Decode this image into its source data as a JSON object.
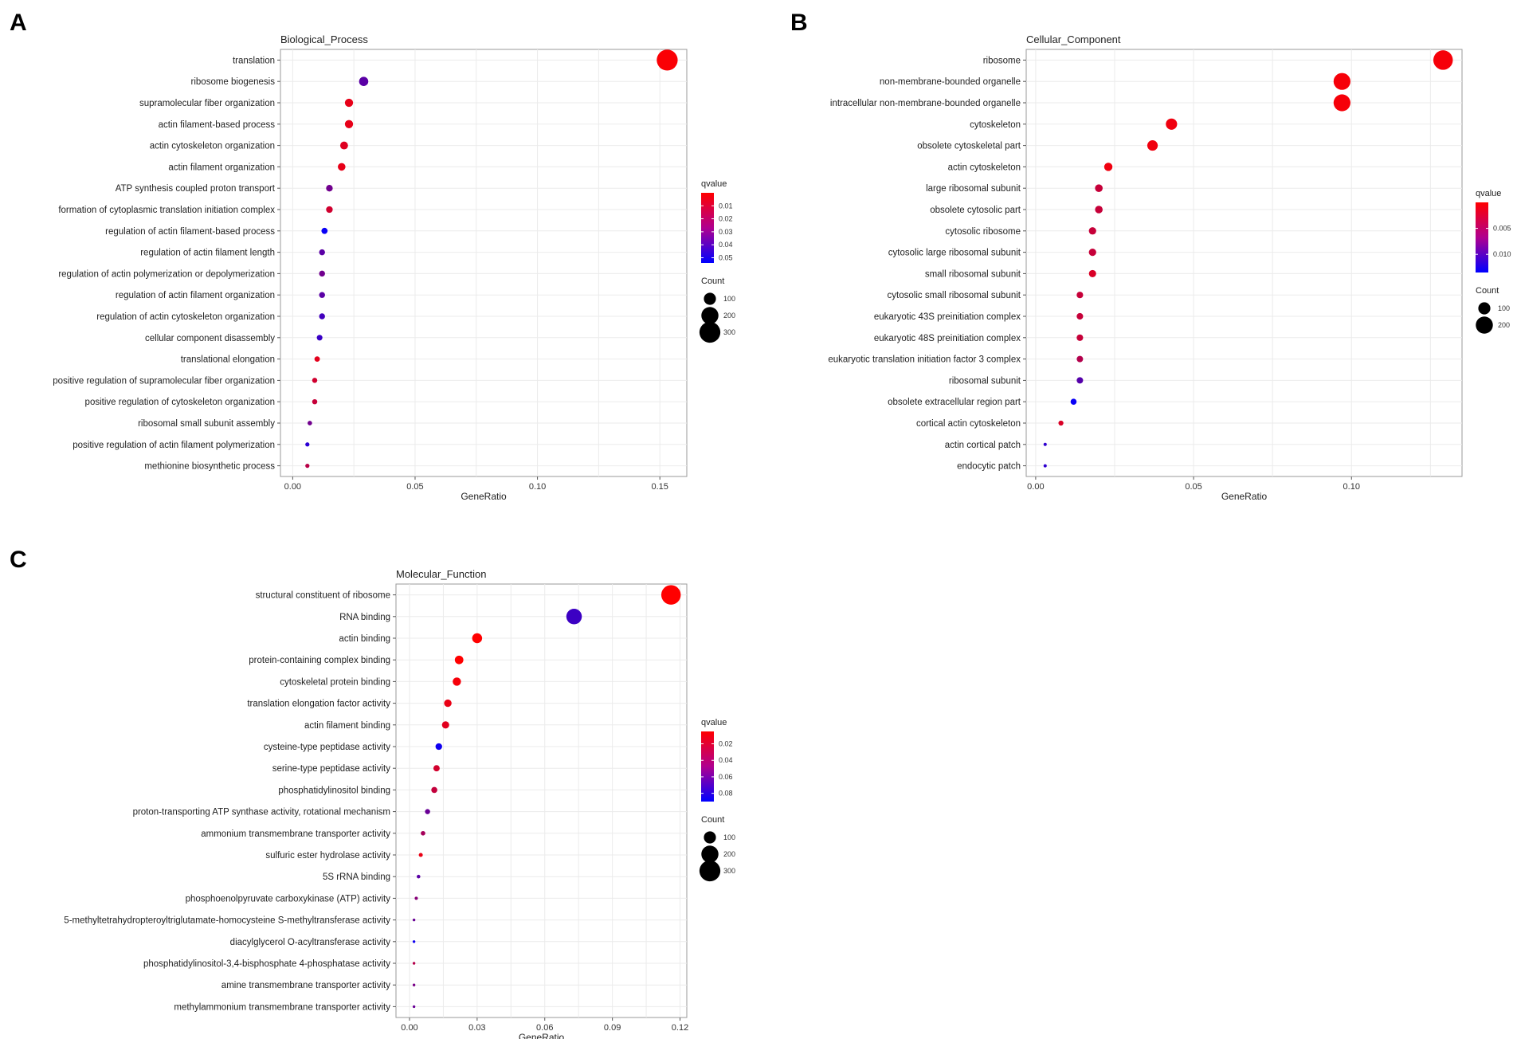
{
  "chart_data": [
    {
      "panel": "A",
      "type": "scatter",
      "title": "Biological_Process",
      "xlabel": "GeneRatio",
      "ylabel": "",
      "xlim": [
        -0.005,
        0.161
      ],
      "xticks": [
        0.0,
        0.05,
        0.1,
        0.15
      ],
      "xtick_labels": [
        "0.00",
        "0.05",
        "0.10",
        "0.15"
      ],
      "grid": true,
      "legend_position": "right",
      "categories": [
        "translation",
        "ribosome biogenesis",
        "supramolecular fiber organization",
        "actin filament-based process",
        "actin cytoskeleton organization",
        "actin filament organization",
        "ATP synthesis coupled proton transport",
        "formation of cytoplasmic translation initiation complex",
        "regulation of actin filament-based process",
        "regulation of actin filament length",
        "regulation of actin polymerization or depolymerization",
        "regulation of actin filament organization",
        "regulation of actin cytoskeleton organization",
        "cellular component disassembly",
        "translational elongation",
        "positive regulation of supramolecular fiber organization",
        "positive regulation of cytoskeleton organization",
        "ribosomal small subunit assembly",
        "positive regulation of actin filament polymerization",
        "methionine biosynthetic process"
      ],
      "gene_ratio": [
        0.153,
        0.029,
        0.023,
        0.023,
        0.021,
        0.02,
        0.015,
        0.015,
        0.013,
        0.012,
        0.012,
        0.012,
        0.012,
        0.011,
        0.01,
        0.009,
        0.009,
        0.007,
        0.006,
        0.006
      ],
      "count": [
        300,
        58,
        46,
        46,
        42,
        40,
        30,
        30,
        26,
        24,
        24,
        24,
        24,
        22,
        20,
        18,
        18,
        14,
        12,
        12
      ],
      "qvalue": [
        0.001,
        0.035,
        0.005,
        0.005,
        0.007,
        0.005,
        0.03,
        0.01,
        0.052,
        0.035,
        0.03,
        0.035,
        0.04,
        0.042,
        0.006,
        0.01,
        0.012,
        0.03,
        0.045,
        0.015
      ],
      "color_legend": {
        "title": "qvalue",
        "ticks": [
          0.01,
          0.02,
          0.03,
          0.04,
          0.05
        ],
        "tick_labels": [
          "0.01",
          "0.02",
          "0.03",
          "0.04",
          "0.05"
        ],
        "range": [
          0.0,
          0.054
        ]
      },
      "size_legend": {
        "title": "Count",
        "values": [
          100,
          200,
          300
        ],
        "labels": [
          "100",
          "200",
          "300"
        ]
      }
    },
    {
      "panel": "B",
      "type": "scatter",
      "title": "Cellular_Component",
      "xlabel": "GeneRatio",
      "ylabel": "",
      "xlim": [
        -0.003,
        0.135
      ],
      "xticks": [
        0.0,
        0.05,
        0.1
      ],
      "xtick_labels": [
        "0.00",
        "0.05",
        "0.10"
      ],
      "grid": true,
      "legend_position": "right",
      "categories": [
        "ribosome",
        "non-membrane-bounded organelle",
        "intracellular non-membrane-bounded organelle",
        "cytoskeleton",
        "obsolete cytoskeletal part",
        "actin cytoskeleton",
        "large ribosomal subunit",
        "obsolete cytosolic part",
        "cytosolic ribosome",
        "cytosolic large ribosomal subunit",
        "small ribosomal subunit",
        "cytosolic small ribosomal subunit",
        "eukaryotic 43S preinitiation complex",
        "eukaryotic 48S preinitiation complex",
        "eukaryotic translation initiation factor 3 complex",
        "ribosomal subunit",
        "obsolete extracellular region part",
        "cortical actin cytoskeleton",
        "actin cortical patch",
        "endocytic patch"
      ],
      "gene_ratio": [
        0.129,
        0.097,
        0.097,
        0.043,
        0.037,
        0.023,
        0.02,
        0.02,
        0.018,
        0.018,
        0.018,
        0.014,
        0.014,
        0.014,
        0.014,
        0.014,
        0.012,
        0.008,
        0.003,
        0.003
      ],
      "count": [
        260,
        195,
        195,
        87,
        75,
        47,
        40,
        40,
        37,
        37,
        36,
        29,
        29,
        29,
        28,
        28,
        25,
        17,
        7,
        7
      ],
      "qvalue": [
        0.0005,
        0.0005,
        0.0005,
        0.0008,
        0.0008,
        0.0008,
        0.003,
        0.003,
        0.003,
        0.003,
        0.002,
        0.003,
        0.003,
        0.003,
        0.004,
        0.009,
        0.013,
        0.002,
        0.011,
        0.011
      ],
      "color_legend": {
        "title": "qvalue",
        "ticks": [
          0.005,
          0.01
        ],
        "tick_labels": [
          "0.005",
          "0.010"
        ],
        "range": [
          0.0,
          0.0135
        ]
      },
      "size_legend": {
        "title": "Count",
        "values": [
          100,
          200
        ],
        "labels": [
          "100",
          "200"
        ]
      }
    },
    {
      "panel": "C",
      "type": "scatter",
      "title": "Molecular_Function",
      "xlabel": "GeneRatio",
      "ylabel": "",
      "xlim": [
        -0.006,
        0.123
      ],
      "xticks": [
        0.0,
        0.03,
        0.06,
        0.09,
        0.12
      ],
      "xtick_labels": [
        "0.00",
        "0.03",
        "0.06",
        "0.09",
        "0.12"
      ],
      "grid": true,
      "legend_position": "right",
      "categories": [
        "structural constituent of ribosome",
        "RNA binding",
        "actin binding",
        "protein-containing complex binding",
        "cytoskeletal protein binding",
        "translation elongation factor activity",
        "actin filament binding",
        "cysteine-type peptidase activity",
        "serine-type peptidase activity",
        "phosphatidylinositol binding",
        "proton-transporting ATP synthase activity, rotational mechanism",
        "ammonium transmembrane transporter activity",
        "sulfuric ester hydrolase activity",
        "5S rRNA binding",
        "phosphoenolpyruvate carboxykinase (ATP) activity",
        "5-methyltetrahydropteroyltriglutamate-homocysteine S-methyltransferase activity",
        "diacylglycerol O-acyltransferase activity",
        "phosphatidylinositol-3,4-bisphosphate 4-phosphatase activity",
        "amine transmembrane transporter activity",
        "methylammonium transmembrane transporter activity"
      ],
      "gene_ratio": [
        0.116,
        0.073,
        0.03,
        0.022,
        0.021,
        0.017,
        0.016,
        0.013,
        0.012,
        0.011,
        0.008,
        0.006,
        0.005,
        0.004,
        0.003,
        0.002,
        0.002,
        0.002,
        0.002,
        0.002
      ],
      "count": [
        260,
        165,
        68,
        50,
        47,
        38,
        36,
        30,
        27,
        25,
        18,
        14,
        11,
        9,
        7,
        5,
        5,
        5,
        5,
        5
      ],
      "qvalue": [
        0.002,
        0.07,
        0.005,
        0.005,
        0.008,
        0.012,
        0.015,
        0.085,
        0.02,
        0.025,
        0.055,
        0.035,
        0.012,
        0.06,
        0.045,
        0.055,
        0.085,
        0.03,
        0.05,
        0.055
      ],
      "color_legend": {
        "title": "qvalue",
        "ticks": [
          0.02,
          0.04,
          0.06,
          0.08
        ],
        "tick_labels": [
          "0.02",
          "0.04",
          "0.06",
          "0.08"
        ],
        "range": [
          0.005,
          0.09
        ]
      },
      "size_legend": {
        "title": "Count",
        "values": [
          100,
          200,
          300
        ],
        "labels": [
          "100",
          "200",
          "300"
        ]
      }
    }
  ]
}
